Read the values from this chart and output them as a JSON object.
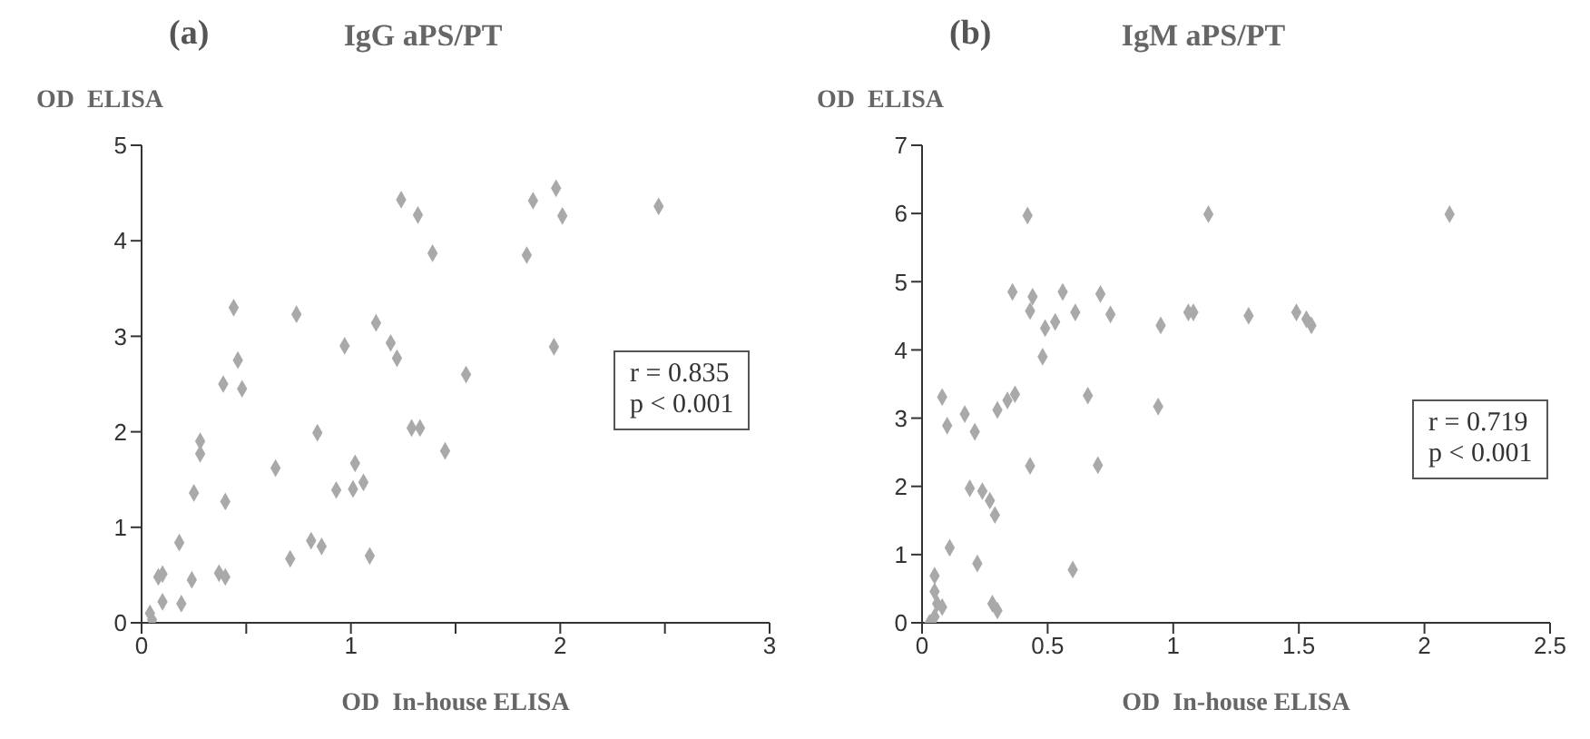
{
  "chart_data": [
    {
      "type": "scatter",
      "title": "IgG aPS/PT",
      "xlabel": "OD  In-house ELISA",
      "ylabel": "OD  ELISA",
      "annotations": [
        "(a)",
        "r = 0.835",
        "p < 0.001"
      ],
      "marker": "diamond",
      "grid": false,
      "legend": false,
      "xlim": [
        0,
        3
      ],
      "xticks": [
        0,
        {
          "value": 0.5,
          "label": null
        },
        1,
        {
          "value": 1.5,
          "label": null
        },
        2,
        {
          "value": 2.5,
          "label": null
        },
        3
      ],
      "ylim": [
        0,
        5
      ],
      "yticks": [
        0,
        1,
        2,
        3,
        4,
        5
      ],
      "series": [
        {
          "color": "#a9a9a9",
          "x": [
            1.24,
            1.32,
            1.39,
            0.44,
            0.74,
            0.46,
            0.39,
            0.48,
            0.97,
            1.12,
            1.19,
            1.22,
            1.55,
            0.28,
            0.28,
            0.25,
            0.4,
            0.64,
            0.84,
            1.29,
            1.33,
            1.45,
            0.93,
            1.02,
            1.01,
            1.06,
            0.18,
            0.1,
            0.08,
            0.24,
            0.19,
            0.1,
            0.05,
            0.04,
            0.37,
            0.4,
            0.71,
            0.81,
            0.86,
            1.09,
            1.87,
            1.98,
            2.01,
            2.47,
            1.84,
            1.97
          ],
          "values": [
            4.43,
            4.27,
            3.87,
            3.3,
            3.23,
            2.75,
            2.5,
            2.45,
            2.9,
            3.14,
            2.93,
            2.77,
            2.6,
            1.9,
            1.77,
            1.36,
            1.27,
            1.62,
            1.99,
            2.04,
            2.04,
            1.8,
            1.39,
            1.67,
            1.4,
            1.47,
            0.84,
            0.51,
            0.48,
            0.45,
            0.2,
            0.22,
            0.03,
            0.1,
            0.52,
            0.48,
            0.67,
            0.86,
            0.8,
            0.7,
            4.42,
            4.55,
            4.26,
            4.36,
            3.85,
            2.89
          ]
        }
      ]
    },
    {
      "type": "scatter",
      "title": "IgM aPS/PT",
      "xlabel": "OD  In-house ELISA",
      "ylabel": "OD  ELISA",
      "annotations": [
        "(b)",
        "r = 0.719",
        "p < 0.001"
      ],
      "marker": "diamond",
      "grid": false,
      "legend": false,
      "xlim": [
        0,
        2.5
      ],
      "xticks": [
        0,
        0.5,
        1,
        1.5,
        2,
        2.5
      ],
      "ylim": [
        0,
        7
      ],
      "yticks": [
        0,
        1,
        2,
        3,
        4,
        5,
        6,
        7
      ],
      "series": [
        {
          "color": "#a9a9a9",
          "x": [
            0.42,
            0.36,
            0.44,
            0.43,
            0.56,
            0.61,
            0.71,
            0.75,
            0.49,
            0.53,
            0.48,
            0.95,
            1.06,
            0.08,
            0.1,
            0.17,
            0.21,
            0.3,
            0.34,
            0.37,
            0.66,
            0.94,
            0.43,
            0.7,
            0.19,
            0.24,
            0.27,
            0.29,
            0.11,
            0.22,
            0.6,
            0.28,
            0.3,
            0.05,
            0.05,
            0.06,
            0.05,
            0.08,
            0.03,
            1.14,
            2.1,
            1.08,
            1.3,
            1.49,
            1.53,
            1.55
          ],
          "values": [
            5.97,
            4.85,
            4.78,
            4.57,
            4.85,
            4.55,
            4.82,
            4.52,
            4.32,
            4.41,
            3.9,
            4.36,
            4.55,
            3.31,
            2.89,
            3.06,
            2.8,
            3.12,
            3.26,
            3.35,
            3.33,
            3.17,
            2.3,
            2.31,
            1.97,
            1.93,
            1.79,
            1.58,
            1.1,
            0.87,
            0.78,
            0.28,
            0.18,
            0.69,
            0.46,
            0.28,
            0.09,
            0.23,
            0.0,
            5.99,
            5.99,
            4.55,
            4.5,
            4.55,
            4.45,
            4.36
          ]
        }
      ]
    }
  ]
}
